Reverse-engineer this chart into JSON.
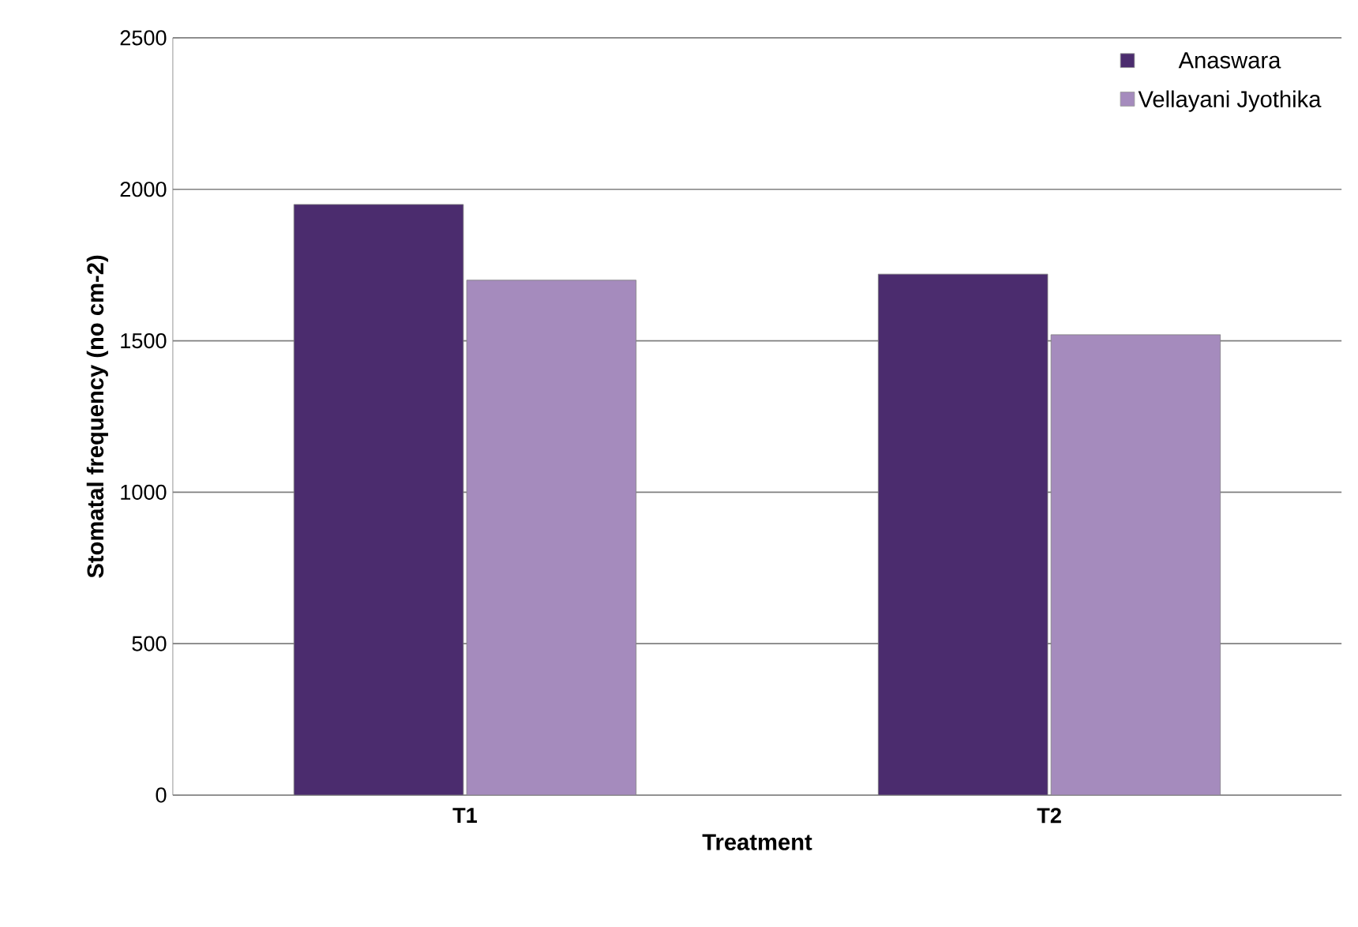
{
  "chart_data": {
    "type": "bar",
    "xlabel": "Treatment",
    "ylabel": "Stomatal frequency (no cm-2)",
    "categories": [
      "T1",
      "T2"
    ],
    "series": [
      {
        "name": "Anaswara",
        "color": "#4b2c6e",
        "values": [
          1950,
          1720
        ]
      },
      {
        "name": "Vellayani Jyothika",
        "color": "#a58bbd",
        "values": [
          1700,
          1520
        ]
      }
    ],
    "ylim": [
      0,
      2500
    ],
    "yticks": [
      0,
      500,
      1000,
      1500,
      2000,
      2500
    ],
    "grid": "y",
    "legend": "top right"
  }
}
